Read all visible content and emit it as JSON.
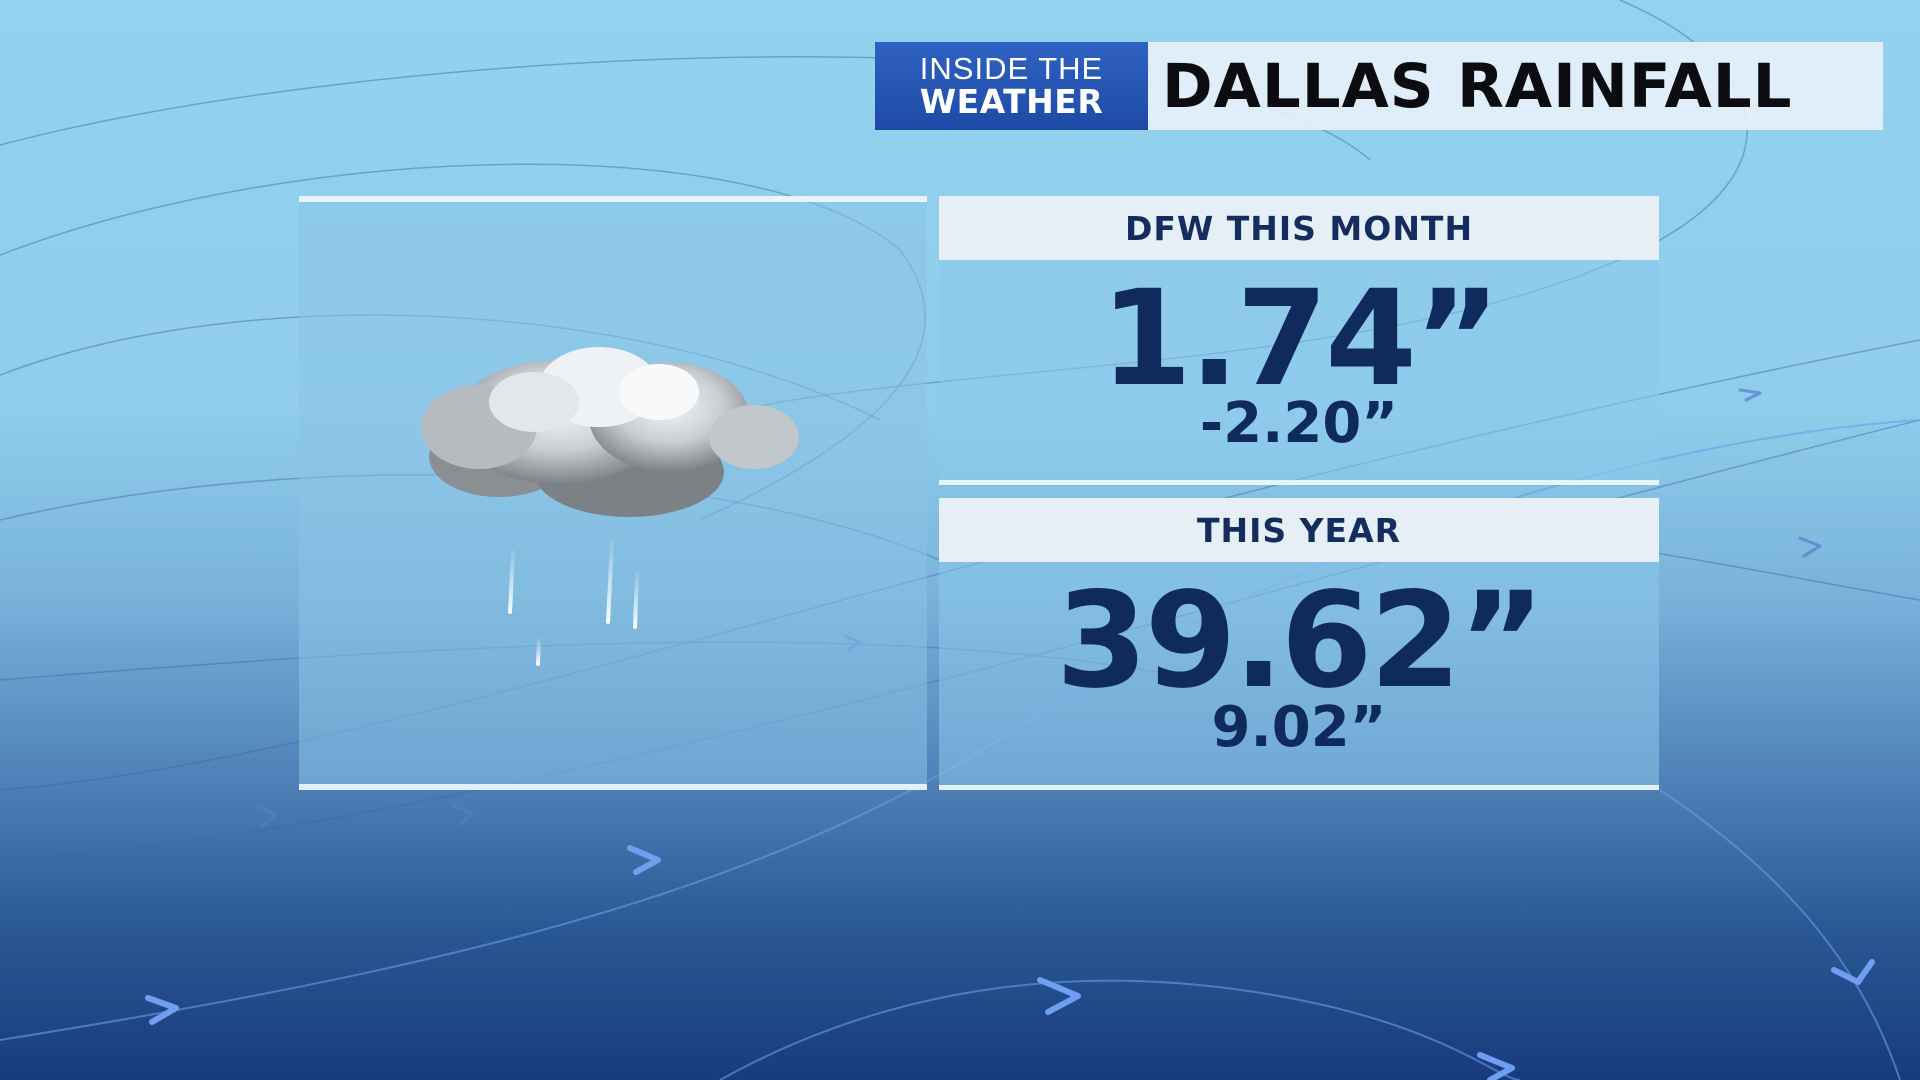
{
  "header": {
    "logo_line1": "INSIDE THE",
    "logo_line2": "WEATHER",
    "title": "DALLAS RAINFALL"
  },
  "graphic": {
    "icon": "rain-cloud-icon"
  },
  "stats": {
    "month": {
      "label": "DFW THIS MONTH",
      "value": "1.74”",
      "departure": "-2.20”"
    },
    "year": {
      "label": "THIS YEAR",
      "value": "39.62”",
      "departure": "9.02”"
    }
  },
  "colors": {
    "logo_blue": "#2456b4",
    "value_navy": "#0f2a5c",
    "header_bg": "#e6f0f8"
  }
}
